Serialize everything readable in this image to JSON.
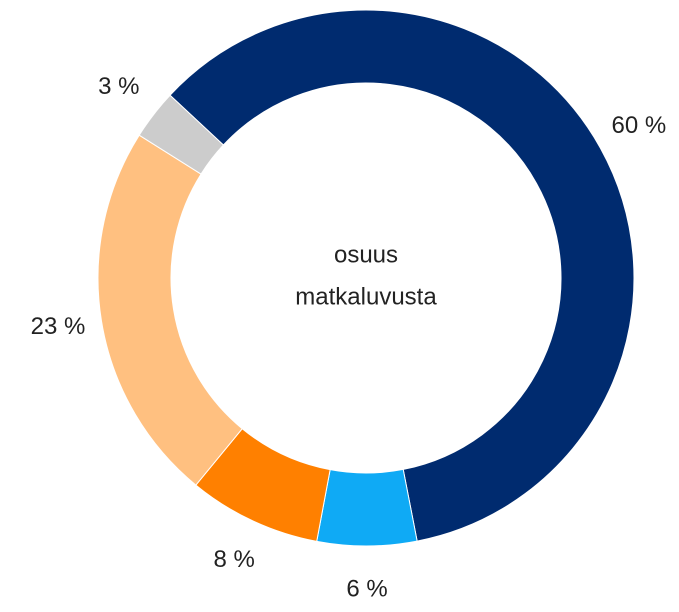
{
  "chart_data": {
    "type": "donut",
    "values": [
      60,
      6,
      8,
      23,
      3
    ],
    "value_labels": [
      "60 %",
      "6 %",
      "8 %",
      "23 %",
      "3 %"
    ],
    "colors": [
      "#002b6f",
      "#0faaf5",
      "#ff8000",
      "#ffc080",
      "#cccccc"
    ],
    "center_text": [
      "osuus",
      "matkaluvusta"
    ]
  }
}
